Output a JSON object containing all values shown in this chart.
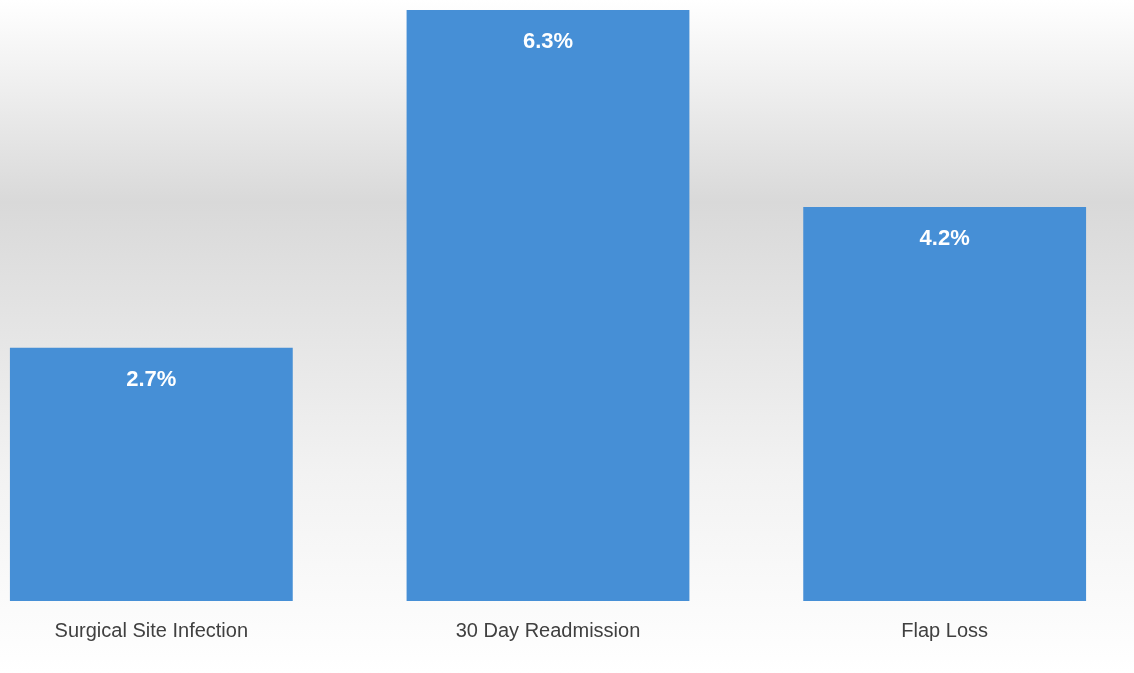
{
  "chart_data": {
    "type": "bar",
    "categories": [
      "Surgical Site Infection",
      "30 Day Readmission",
      "Flap Loss"
    ],
    "values": [
      2.7,
      6.3,
      4.2
    ],
    "color": "#468fd6",
    "value_labels": [
      "2.7%",
      "6.3%",
      "4.2%"
    ],
    "ylim": [
      0,
      6.3
    ],
    "tick_labels": "x",
    "grid": false,
    "legend": false
  }
}
